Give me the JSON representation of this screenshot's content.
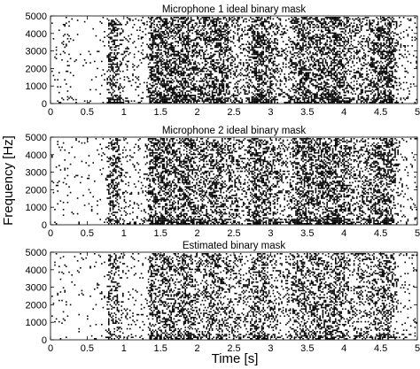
{
  "figure": {
    "ylabel": "Frequency [Hz]",
    "xlabel": "Time [s]"
  },
  "chart_data": [
    {
      "type": "heatmap",
      "title": "Microphone 1 ideal binary mask",
      "xlim": [
        0,
        5
      ],
      "ylim": [
        0,
        5000
      ],
      "xticks": [
        "0",
        "0.5",
        "1",
        "1.5",
        "2",
        "2.5",
        "3",
        "3.5",
        "4",
        "4.5",
        "5"
      ],
      "yticks": [
        "0",
        "1000",
        "2000",
        "3000",
        "4000",
        "5000"
      ],
      "colormap": {
        "0": "#ffffff",
        "1": "#000000"
      },
      "density": 1.0
    },
    {
      "type": "heatmap",
      "title": "Microphone 2 ideal binary mask",
      "xlim": [
        0,
        5
      ],
      "ylim": [
        0,
        5000
      ],
      "xticks": [
        "0",
        "0.5",
        "1",
        "1.5",
        "2",
        "2.5",
        "3",
        "3.5",
        "4",
        "4.5",
        "5"
      ],
      "yticks": [
        "0",
        "1000",
        "2000",
        "3000",
        "4000",
        "5000"
      ],
      "colormap": {
        "0": "#ffffff",
        "1": "#000000"
      },
      "density": 0.95
    },
    {
      "type": "heatmap",
      "title": "Estimated binary mask",
      "xlim": [
        0,
        5
      ],
      "ylim": [
        0,
        5000
      ],
      "xticks": [
        "0",
        "0.5",
        "1",
        "1.5",
        "2",
        "2.5",
        "3",
        "3.5",
        "4",
        "4.5",
        "5"
      ],
      "yticks": [
        "0",
        "1000",
        "2000",
        "3000",
        "4000",
        "5000"
      ],
      "colormap": {
        "0": "#ffffff",
        "1": "#000000"
      },
      "density": 0.72
    }
  ]
}
